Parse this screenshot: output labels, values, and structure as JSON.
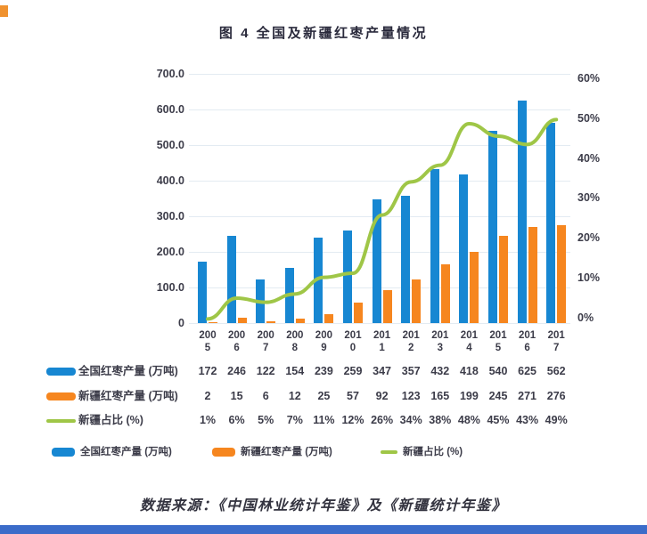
{
  "page": {
    "title": "图 4  全国及新疆红枣产量情况",
    "source": "数据来源：《中国林业统计年鉴》及《新疆统计年鉴》"
  },
  "colors": {
    "national": "#1787d2",
    "xinjiang": "#f6861f",
    "ratio": "#9fc647",
    "grid": "#e3ebf2",
    "text": "#3c3c49",
    "bottom_bar": "#3b6cc9",
    "accent_mark": "#f0922f"
  },
  "chart_data": {
    "type": "bar",
    "subtype": "grouped-bars-with-percentage-line",
    "title": "图 4 全国及新疆红枣产量情况",
    "categories": [
      "2005",
      "2006",
      "2007",
      "2008",
      "2009",
      "2010",
      "2011",
      "2012",
      "2013",
      "2014",
      "2015",
      "2016",
      "2017"
    ],
    "series": [
      {
        "name": "全国红枣产量 (万吨)",
        "type": "bar",
        "axis": "left",
        "color": "#1787d2",
        "values": [
          172,
          246,
          122,
          154,
          239,
          259,
          347,
          357,
          432,
          418,
          540,
          625,
          562
        ],
        "labels": [
          "172",
          "246",
          "122",
          "154",
          "239",
          "259",
          "347",
          "357",
          "432",
          "418",
          "540",
          "625",
          "562"
        ]
      },
      {
        "name": "新疆红枣产量 (万吨)",
        "type": "bar",
        "axis": "left",
        "color": "#f6861f",
        "values": [
          2,
          15,
          6,
          12,
          25,
          57,
          92,
          123,
          165,
          199,
          245,
          271,
          276
        ],
        "labels": [
          "2",
          "15",
          "6",
          "12",
          "25",
          "57",
          "92",
          "123",
          "165",
          "199",
          "245",
          "271",
          "276"
        ]
      },
      {
        "name": "新疆占比 (%)",
        "type": "line",
        "axis": "right",
        "color": "#9fc647",
        "values": [
          1,
          6,
          5,
          7,
          11,
          12,
          26,
          34,
          38,
          48,
          45,
          43,
          49
        ],
        "labels": [
          "1%",
          "6%",
          "5%",
          "7%",
          "11%",
          "12%",
          "26%",
          "34%",
          "38%",
          "48%",
          "45%",
          "43%",
          "49%"
        ]
      }
    ],
    "left_axis": {
      "min": 0,
      "max": 700,
      "ticks": [
        "700.0",
        "600.0",
        "500.0",
        "400.0",
        "300.0",
        "200.0",
        "100.0",
        "0"
      ]
    },
    "right_axis": {
      "min": 0,
      "max": 60,
      "ticks": [
        "60%",
        "50%",
        "40%",
        "30%",
        "20%",
        "10%",
        "0%"
      ]
    },
    "grid": true,
    "legend_position": "bottom",
    "legend": [
      {
        "label": "全国红枣产量 (万吨)",
        "shape": "bar",
        "color": "#1787d2"
      },
      {
        "label": "新疆红枣产量 (万吨)",
        "shape": "bar",
        "color": "#f6861f"
      },
      {
        "label": "新疆占比 (%)",
        "shape": "line",
        "color": "#9fc647"
      }
    ]
  }
}
